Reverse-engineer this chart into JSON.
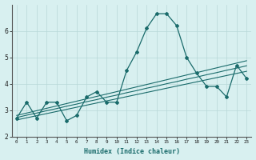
{
  "xlabel": "Humidex (Indice chaleur)",
  "x": [
    0,
    1,
    2,
    3,
    4,
    5,
    6,
    7,
    8,
    9,
    10,
    11,
    12,
    13,
    14,
    15,
    16,
    17,
    18,
    19,
    20,
    21,
    22,
    23
  ],
  "y_main": [
    2.7,
    3.3,
    2.7,
    3.3,
    3.3,
    2.6,
    2.8,
    3.5,
    3.7,
    3.3,
    3.3,
    4.5,
    5.2,
    6.1,
    6.65,
    6.65,
    6.2,
    5.0,
    4.4,
    3.9,
    3.9,
    3.5,
    4.7,
    4.2
  ],
  "y_trend1": [
    2.8,
    2.89,
    2.98,
    3.07,
    3.16,
    3.25,
    3.34,
    3.43,
    3.52,
    3.61,
    3.7,
    3.79,
    3.88,
    3.97,
    4.06,
    4.15,
    4.24,
    4.33,
    4.42,
    4.51,
    4.6,
    4.69,
    4.78,
    4.87
  ],
  "y_trend2": [
    2.72,
    2.81,
    2.89,
    2.98,
    3.06,
    3.15,
    3.23,
    3.32,
    3.4,
    3.49,
    3.57,
    3.66,
    3.74,
    3.83,
    3.91,
    4.0,
    4.08,
    4.17,
    4.25,
    4.34,
    4.42,
    4.51,
    4.59,
    4.68
  ],
  "y_trend3": [
    2.63,
    2.71,
    2.79,
    2.87,
    2.95,
    3.03,
    3.11,
    3.19,
    3.27,
    3.35,
    3.43,
    3.51,
    3.59,
    3.67,
    3.75,
    3.83,
    3.91,
    3.99,
    4.07,
    4.15,
    4.23,
    4.31,
    4.39,
    4.47
  ],
  "line_color": "#1a6b6b",
  "bg_color": "#d8f0f0",
  "grid_color": "#b8d8d8",
  "ylim": [
    2.0,
    7.0
  ],
  "xlim_min": -0.5,
  "xlim_max": 23.5,
  "yticks": [
    2,
    3,
    4,
    5,
    6
  ],
  "tick_labels": [
    "0",
    "1",
    "2",
    "3",
    "4",
    "5",
    "6",
    "7",
    "8",
    "9",
    "10",
    "11",
    "12",
    "13",
    "14",
    "15",
    "16",
    "17",
    "18",
    "19",
    "20",
    "21",
    "22",
    "23"
  ]
}
